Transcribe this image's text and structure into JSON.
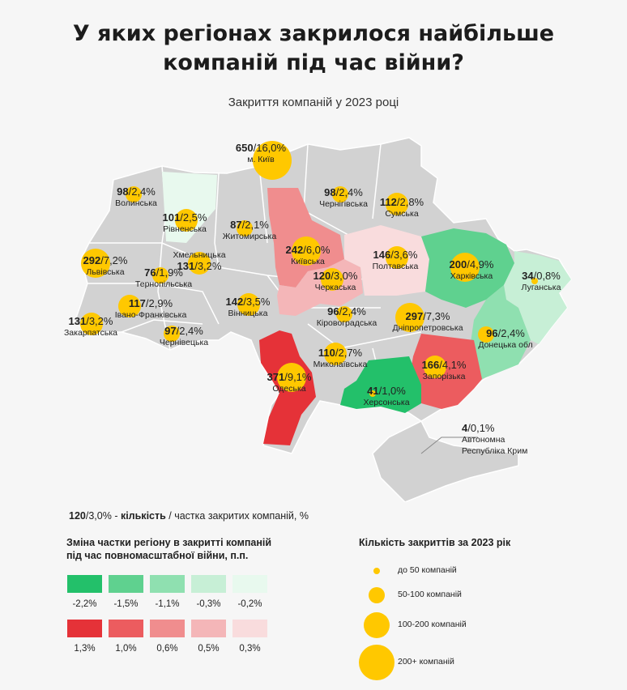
{
  "title_line1": "У яких регіонах закрилося найбільше",
  "title_line2": "компаній під час війни?",
  "subtitle": "Закриття компаній у 2023 році",
  "colors": {
    "g5": "#23c06a",
    "g4": "#5fd18f",
    "g3": "#8fe0b0",
    "g2": "#c7efd6",
    "g1": "#e8f9ee",
    "r5": "#e53238",
    "r4": "#ec5c5f",
    "r3": "#f08d8e",
    "r2": "#f4b6b8",
    "r1": "#f9dcdd",
    "neutral": "#d2d2d2",
    "bubble": "#ffc800"
  },
  "regions": [
    {
      "id": "kyiv_city",
      "count": "650",
      "pct": "16,0%",
      "name": "м. Київ"
    },
    {
      "id": "volyn",
      "count": "98",
      "pct": "2,4%",
      "name": "Волинська"
    },
    {
      "id": "rivne",
      "count": "101",
      "pct": "2,5%",
      "name": "Рівненська"
    },
    {
      "id": "zhytomyr",
      "count": "87",
      "pct": "2,1%",
      "name": "Житомирська"
    },
    {
      "id": "chernihiv",
      "count": "98",
      "pct": "2,4%",
      "name": "Чернігівська"
    },
    {
      "id": "sumy",
      "count": "112",
      "pct": "2,8%",
      "name": "Сумська"
    },
    {
      "id": "lviv",
      "count": "292",
      "pct": "7,2%",
      "name": "Львівська"
    },
    {
      "id": "khmelnytskyi",
      "count": "131",
      "pct": "3,2%",
      "name": "Хмельницька"
    },
    {
      "id": "ternopil",
      "count": "76",
      "pct": "1,9%",
      "name": "Тернопільська"
    },
    {
      "id": "kyiv_obl",
      "count": "242",
      "pct": "6,0%",
      "name": "Київська"
    },
    {
      "id": "cherkasy",
      "count": "120",
      "pct": "3,0%",
      "name": "Черкаська"
    },
    {
      "id": "poltava",
      "count": "146",
      "pct": "3,6%",
      "name": "Полтавська"
    },
    {
      "id": "kharkiv",
      "count": "200",
      "pct": "4,9%",
      "name": "Харківська"
    },
    {
      "id": "luhansk",
      "count": "34",
      "pct": "0,8%",
      "name": "Луганська"
    },
    {
      "id": "ivano",
      "count": "117",
      "pct": "2,9%",
      "name": "Івано-Франківська"
    },
    {
      "id": "zakarpattia",
      "count": "131",
      "pct": "3,2%",
      "name": "Закарпатська"
    },
    {
      "id": "chernivtsi",
      "count": "97",
      "pct": "2,4%",
      "name": "Чернівецька"
    },
    {
      "id": "vinnytsia",
      "count": "142",
      "pct": "3,5%",
      "name": "Вінницька"
    },
    {
      "id": "kirovohrad",
      "count": "96",
      "pct": "2,4%",
      "name": "Кіровоградська"
    },
    {
      "id": "dnipro",
      "count": "297",
      "pct": "7,3%",
      "name": "Дніпропетровська"
    },
    {
      "id": "donetsk",
      "count": "96",
      "pct": "2,4%",
      "name": "Донецька обл"
    },
    {
      "id": "mykolaiv",
      "count": "110",
      "pct": "2,7%",
      "name": "Миколаївська"
    },
    {
      "id": "odesa",
      "count": "371",
      "pct": "9,1%",
      "name": "Одеська"
    },
    {
      "id": "zaporizhzhia",
      "count": "166",
      "pct": "4,1%",
      "name": "Запорізька"
    },
    {
      "id": "kherson",
      "count": "41",
      "pct": "1,0%",
      "name": "Херсонська"
    },
    {
      "id": "crimea",
      "count": "4",
      "pct": "0,1%",
      "name": "Автономна Республіка Крим"
    }
  ],
  "legend_key": {
    "count_example": "120",
    "pct_example": "3,0%",
    "sep": " - ",
    "bold_text": "кількість",
    "rest_text": " / частка закритих компаній, %"
  },
  "change_legend": {
    "title_line1": "Зміна частки регіону в закритті компаній",
    "title_line2": "під час повномасштабної війни, п.п.",
    "green": [
      "-2,2%",
      "-1,5%",
      "-1,1%",
      "-0,3%",
      "-0,2%"
    ],
    "red": [
      "1,3%",
      "1,0%",
      "0,6%",
      "0,5%",
      "0,3%"
    ]
  },
  "size_legend": {
    "title": "Кількість закриттів за 2023 рік",
    "items": [
      "до 50 компаній",
      "50-100 компаній",
      "100-200 компаній",
      "200+ компаній"
    ]
  }
}
